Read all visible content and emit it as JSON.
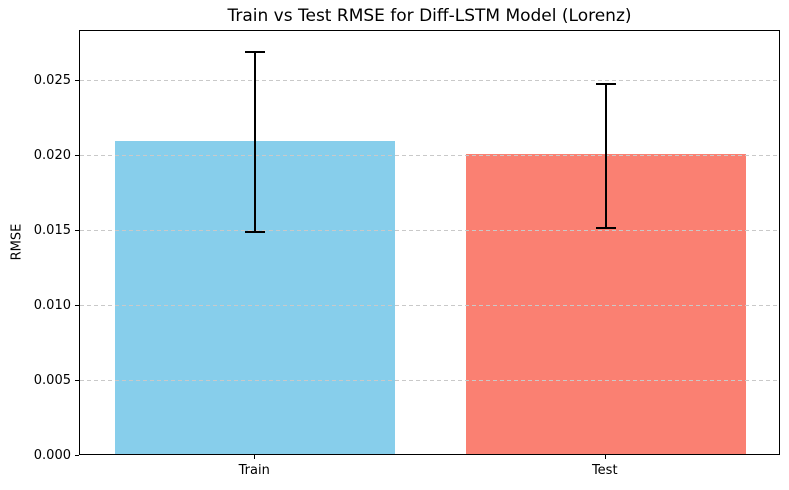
{
  "figure": {
    "background": "#ffffff",
    "text_color": "#000000",
    "grid_color": "#c9c9c9",
    "spine_color": "#000000"
  },
  "chart_data": {
    "type": "bar",
    "title": "Train vs Test RMSE for Diff-LSTM Model (Lorenz)",
    "xlabel": "",
    "ylabel": "RMSE",
    "categories": [
      "Train",
      "Test"
    ],
    "values": [
      0.0209,
      0.02
    ],
    "error_bars": [
      0.006,
      0.0048
    ],
    "bar_colors": [
      "#87CEEB",
      "#FA8072"
    ],
    "bar_names": [
      "bar-train",
      "bar-test"
    ],
    "error_bar_color": "#000000",
    "ylim": [
      0,
      0.028333
    ],
    "xlim": [
      -0.5,
      1.5
    ],
    "yticks": [
      0,
      0.005,
      0.01,
      0.015,
      0.02,
      0.025
    ],
    "ytick_labels": [
      "0.000",
      "0.005",
      "0.010",
      "0.015",
      "0.020",
      "0.025"
    ],
    "grid": "horizontal-dashed",
    "legend": "none"
  }
}
